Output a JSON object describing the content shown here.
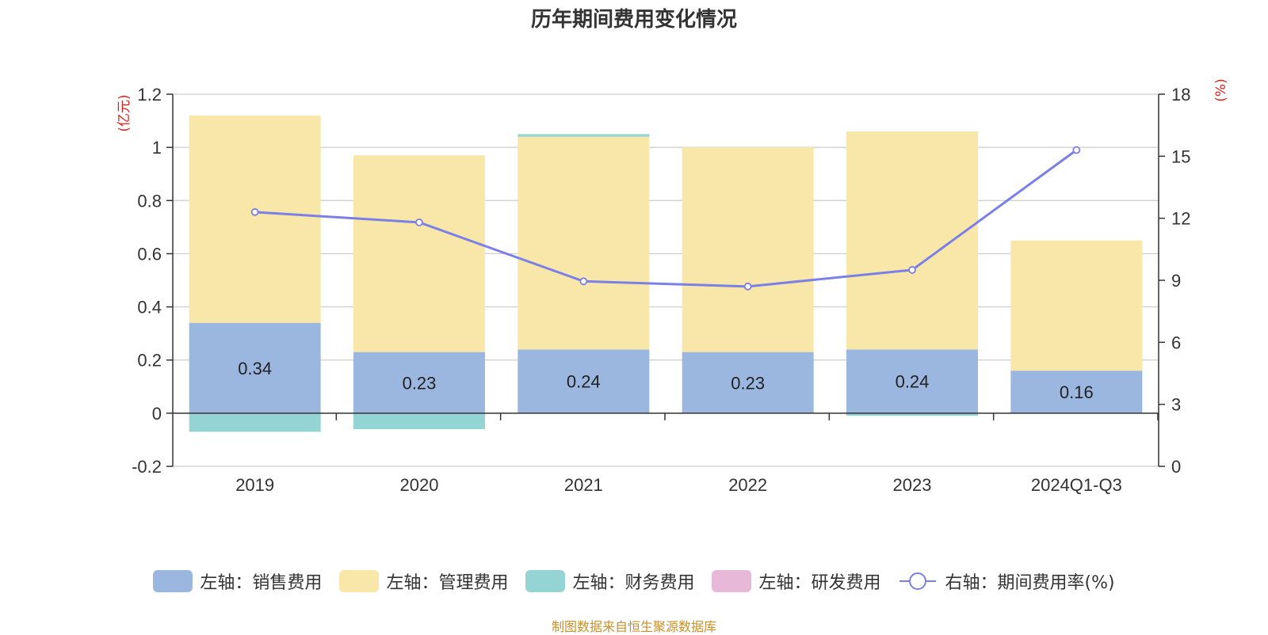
{
  "chart_data": {
    "type": "bar",
    "title": "历年期间费用变化情况",
    "categories": [
      "2019",
      "2020",
      "2021",
      "2022",
      "2023",
      "2024Q1-Q3"
    ],
    "left_axis": {
      "label": "(亿元)",
      "ticks": [
        "-0.2",
        "0",
        "0.2",
        "0.4",
        "0.6",
        "0.8",
        "1",
        "1.2"
      ],
      "ylim": [
        -0.2,
        1.2
      ]
    },
    "right_axis": {
      "label": "(%)",
      "ticks": [
        "0",
        "3",
        "6",
        "9",
        "12",
        "15",
        "18"
      ],
      "ylim": [
        0,
        18
      ]
    },
    "grid": true,
    "series": [
      {
        "name": "左轴：销售费用",
        "axis": "left",
        "kind": "bar",
        "color": "#9bb7e0",
        "values": [
          0.34,
          0.23,
          0.24,
          0.23,
          0.24,
          0.16
        ],
        "labels": [
          "0.34",
          "0.23",
          "0.24",
          "0.23",
          "0.24",
          "0.16"
        ]
      },
      {
        "name": "左轴：管理费用",
        "axis": "left",
        "kind": "bar",
        "color": "#f8e7a8",
        "values": [
          0.78,
          0.74,
          0.8,
          0.77,
          0.82,
          0.49
        ]
      },
      {
        "name": "左轴：财务费用",
        "axis": "left",
        "kind": "bar",
        "color": "#95d4d4",
        "values": [
          -0.07,
          -0.06,
          0.01,
          0.0,
          -0.01,
          0.0
        ]
      },
      {
        "name": "左轴：研发费用",
        "axis": "left",
        "kind": "bar",
        "color": "#e8b8d8",
        "values": [
          0,
          0,
          0,
          0,
          0,
          0
        ]
      },
      {
        "name": "右轴：期间费用率(%)",
        "axis": "right",
        "kind": "line",
        "color": "#7b7fe8",
        "values": [
          12.3,
          11.8,
          8.95,
          8.7,
          9.5,
          15.3
        ]
      }
    ],
    "legend_position": "bottom-center"
  },
  "source_note": "制图数据来自恒生聚源数据库"
}
